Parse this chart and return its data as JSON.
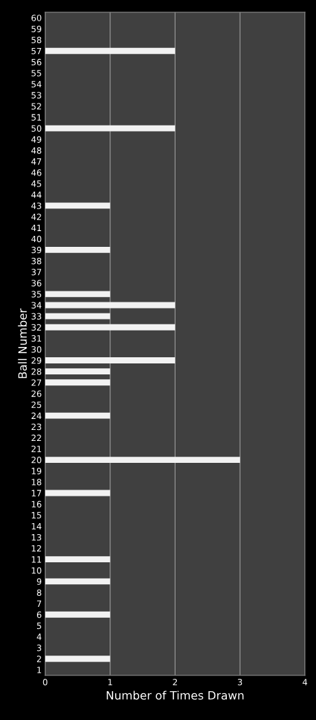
{
  "chart_data": {
    "type": "bar",
    "orientation": "horizontal",
    "xlabel": "Number of Times Drawn",
    "ylabel": "Ball Number",
    "categories": [
      "60",
      "59",
      "58",
      "57",
      "56",
      "55",
      "54",
      "53",
      "52",
      "51",
      "50",
      "49",
      "48",
      "47",
      "46",
      "45",
      "44",
      "43",
      "42",
      "41",
      "40",
      "39",
      "38",
      "37",
      "36",
      "35",
      "34",
      "33",
      "32",
      "31",
      "30",
      "29",
      "28",
      "27",
      "26",
      "25",
      "24",
      "23",
      "22",
      "21",
      "20",
      "19",
      "18",
      "17",
      "16",
      "15",
      "14",
      "13",
      "12",
      "11",
      "10",
      "9",
      "8",
      "7",
      "6",
      "5",
      "4",
      "3",
      "2",
      "1"
    ],
    "values": [
      0,
      0,
      0,
      2,
      0,
      0,
      0,
      0,
      0,
      0,
      2,
      0,
      0,
      0,
      0,
      0,
      0,
      1,
      0,
      0,
      0,
      1,
      0,
      0,
      0,
      1,
      2,
      1,
      2,
      0,
      0,
      2,
      1,
      1,
      0,
      0,
      1,
      0,
      0,
      0,
      3,
      0,
      0,
      1,
      0,
      0,
      0,
      0,
      0,
      1,
      0,
      1,
      0,
      0,
      1,
      0,
      0,
      0,
      1,
      0
    ],
    "color": "#f2f2f2",
    "xlim": [
      0,
      4
    ],
    "xticks": [
      0,
      1,
      2,
      3,
      4
    ],
    "grid": "x"
  }
}
